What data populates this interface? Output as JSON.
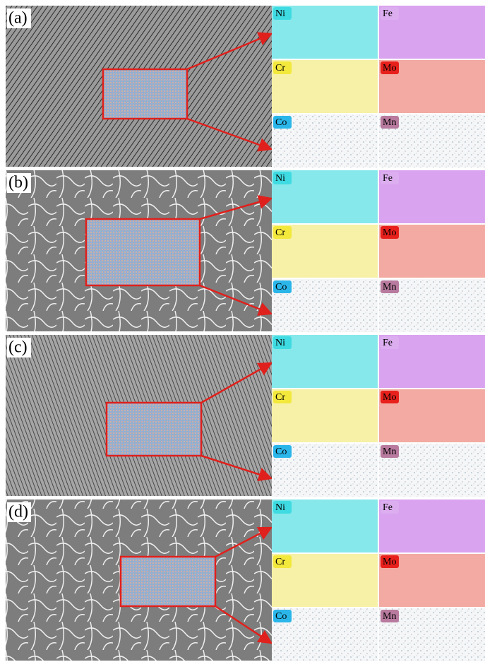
{
  "panels": [
    {
      "label": "(a)",
      "maps": [
        "Ni",
        "Fe",
        "Cr",
        "Mo",
        "Co",
        "Mn"
      ]
    },
    {
      "label": "(b)",
      "maps": [
        "Ni",
        "Fe",
        "Cr",
        "Mo",
        "Co",
        "Mn"
      ]
    },
    {
      "label": "(c)",
      "maps": [
        "Ni",
        "Fe",
        "Cr",
        "Mo",
        "Co",
        "Mn"
      ]
    },
    {
      "label": "(d)",
      "maps": [
        "Ni",
        "Fe",
        "Cr",
        "Mo",
        "Co",
        "Mn"
      ]
    }
  ]
}
